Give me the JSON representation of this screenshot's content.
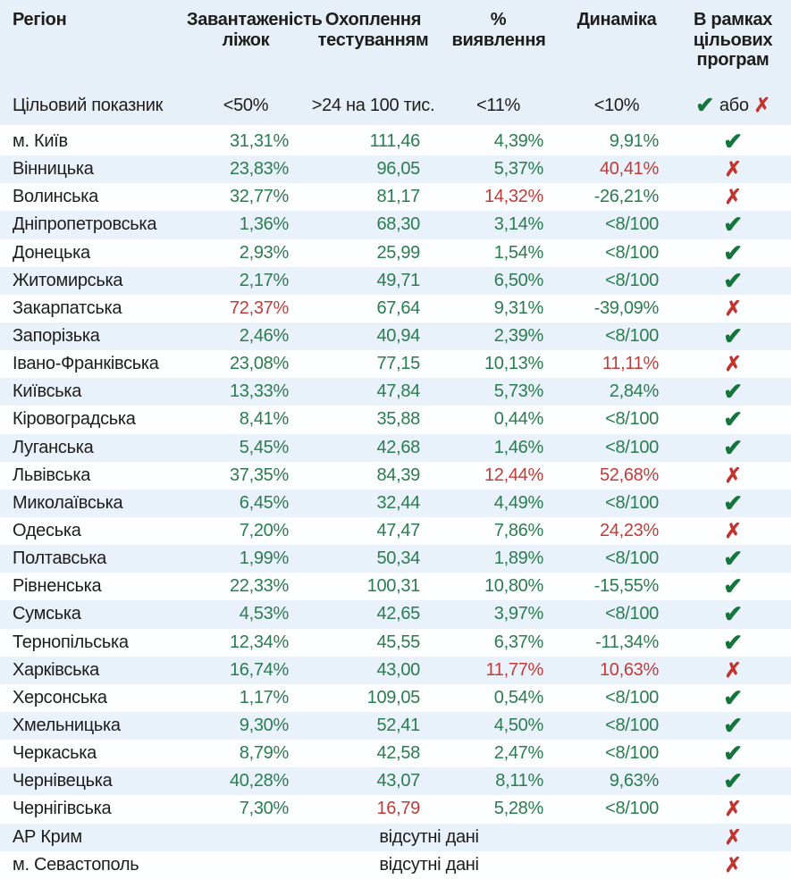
{
  "colors": {
    "header_bg": "#e7f0f9",
    "stripe": "#e9f1fa",
    "good": "#2b7c4f",
    "bad": "#bf3d38",
    "check": "#15763b",
    "cross": "#c2342e",
    "text": "#1d1d1b"
  },
  "icons": {
    "check": "✔",
    "cross": "✗"
  },
  "chart_data": {
    "type": "table",
    "columns": [
      "Регіон",
      "Завантаженість ліжок",
      "Охоплення тестуванням",
      "% виявлення",
      "Динаміка",
      "В рамках цільових програм"
    ],
    "target_row": {
      "label": "Цільовий показник",
      "beds": "<50%",
      "testing": ">24 на 100 тис.",
      "detection": "<11%",
      "dynamics": "<10%",
      "or_word": "або"
    },
    "rows": [
      {
        "region": "м. Київ",
        "values": [
          [
            "31,31%",
            "good"
          ],
          [
            "111,46",
            "good"
          ],
          [
            "4,39%",
            "good"
          ],
          [
            "9,91%",
            "good"
          ]
        ],
        "program": "check"
      },
      {
        "region": "Вінницька",
        "values": [
          [
            "23,83%",
            "good"
          ],
          [
            "96,05",
            "good"
          ],
          [
            "5,37%",
            "good"
          ],
          [
            "40,41%",
            "bad"
          ]
        ],
        "program": "cross"
      },
      {
        "region": "Волинська",
        "values": [
          [
            "32,77%",
            "good"
          ],
          [
            "81,17",
            "good"
          ],
          [
            "14,32%",
            "bad"
          ],
          [
            "-26,21%",
            "good"
          ]
        ],
        "program": "cross"
      },
      {
        "region": "Дніпропетровська",
        "values": [
          [
            "1,36%",
            "good"
          ],
          [
            "68,30",
            "good"
          ],
          [
            "3,14%",
            "good"
          ],
          [
            "<8/100",
            "good"
          ]
        ],
        "program": "check"
      },
      {
        "region": "Донецька",
        "values": [
          [
            "2,93%",
            "good"
          ],
          [
            "25,99",
            "good"
          ],
          [
            "1,54%",
            "good"
          ],
          [
            "<8/100",
            "good"
          ]
        ],
        "program": "check"
      },
      {
        "region": "Житомирська",
        "values": [
          [
            "2,17%",
            "good"
          ],
          [
            "49,71",
            "good"
          ],
          [
            "6,50%",
            "good"
          ],
          [
            "<8/100",
            "good"
          ]
        ],
        "program": "check"
      },
      {
        "region": "Закарпатська",
        "values": [
          [
            "72,37%",
            "bad"
          ],
          [
            "67,64",
            "good"
          ],
          [
            "9,31%",
            "good"
          ],
          [
            "-39,09%",
            "good"
          ]
        ],
        "program": "cross"
      },
      {
        "region": "Запорізька",
        "values": [
          [
            "2,46%",
            "good"
          ],
          [
            "40,94",
            "good"
          ],
          [
            "2,39%",
            "good"
          ],
          [
            "<8/100",
            "good"
          ]
        ],
        "program": "check"
      },
      {
        "region": "Івано-Франківська",
        "values": [
          [
            "23,08%",
            "good"
          ],
          [
            "77,15",
            "good"
          ],
          [
            "10,13%",
            "good"
          ],
          [
            "11,11%",
            "bad"
          ]
        ],
        "program": "cross"
      },
      {
        "region": "Київська",
        "values": [
          [
            "13,33%",
            "good"
          ],
          [
            "47,84",
            "good"
          ],
          [
            "5,73%",
            "good"
          ],
          [
            "2,84%",
            "good"
          ]
        ],
        "program": "check"
      },
      {
        "region": "Кіровоградська",
        "values": [
          [
            "8,41%",
            "good"
          ],
          [
            "35,88",
            "good"
          ],
          [
            "0,44%",
            "good"
          ],
          [
            "<8/100",
            "good"
          ]
        ],
        "program": "check"
      },
      {
        "region": "Луганська",
        "values": [
          [
            "5,45%",
            "good"
          ],
          [
            "42,68",
            "good"
          ],
          [
            "1,46%",
            "good"
          ],
          [
            "<8/100",
            "good"
          ]
        ],
        "program": "check"
      },
      {
        "region": "Львівська",
        "values": [
          [
            "37,35%",
            "good"
          ],
          [
            "84,39",
            "good"
          ],
          [
            "12,44%",
            "bad"
          ],
          [
            "52,68%",
            "bad"
          ]
        ],
        "program": "cross"
      },
      {
        "region": "Миколаївська",
        "values": [
          [
            "6,45%",
            "good"
          ],
          [
            "32,44",
            "good"
          ],
          [
            "4,49%",
            "good"
          ],
          [
            "<8/100",
            "good"
          ]
        ],
        "program": "check"
      },
      {
        "region": "Одеська",
        "values": [
          [
            "7,20%",
            "good"
          ],
          [
            "47,47",
            "good"
          ],
          [
            "7,86%",
            "good"
          ],
          [
            "24,23%",
            "bad"
          ]
        ],
        "program": "cross"
      },
      {
        "region": "Полтавська",
        "values": [
          [
            "1,99%",
            "good"
          ],
          [
            "50,34",
            "good"
          ],
          [
            "1,89%",
            "good"
          ],
          [
            "<8/100",
            "good"
          ]
        ],
        "program": "check"
      },
      {
        "region": "Рівненська",
        "values": [
          [
            "22,33%",
            "good"
          ],
          [
            "100,31",
            "good"
          ],
          [
            "10,80%",
            "good"
          ],
          [
            "-15,55%",
            "good"
          ]
        ],
        "program": "check"
      },
      {
        "region": "Сумська",
        "values": [
          [
            "4,53%",
            "good"
          ],
          [
            "42,65",
            "good"
          ],
          [
            "3,97%",
            "good"
          ],
          [
            "<8/100",
            "good"
          ]
        ],
        "program": "check"
      },
      {
        "region": "Тернопільська",
        "values": [
          [
            "12,34%",
            "good"
          ],
          [
            "45,55",
            "good"
          ],
          [
            "6,37%",
            "good"
          ],
          [
            "-11,34%",
            "good"
          ]
        ],
        "program": "check"
      },
      {
        "region": "Харківська",
        "values": [
          [
            "16,74%",
            "good"
          ],
          [
            "43,00",
            "good"
          ],
          [
            "11,77%",
            "bad"
          ],
          [
            "10,63%",
            "bad"
          ]
        ],
        "program": "cross"
      },
      {
        "region": "Херсонська",
        "values": [
          [
            "1,17%",
            "good"
          ],
          [
            "109,05",
            "good"
          ],
          [
            "0,54%",
            "good"
          ],
          [
            "<8/100",
            "good"
          ]
        ],
        "program": "check"
      },
      {
        "region": "Хмельницька",
        "values": [
          [
            "9,30%",
            "good"
          ],
          [
            "52,41",
            "good"
          ],
          [
            "4,50%",
            "good"
          ],
          [
            "<8/100",
            "good"
          ]
        ],
        "program": "check"
      },
      {
        "region": "Черкаська",
        "values": [
          [
            "8,79%",
            "good"
          ],
          [
            "42,58",
            "good"
          ],
          [
            "2,47%",
            "good"
          ],
          [
            "<8/100",
            "good"
          ]
        ],
        "program": "check"
      },
      {
        "region": "Чернівецька",
        "values": [
          [
            "40,28%",
            "good"
          ],
          [
            "43,07",
            "good"
          ],
          [
            "8,11%",
            "good"
          ],
          [
            "9,63%",
            "good"
          ]
        ],
        "program": "check"
      },
      {
        "region": "Чернігівська",
        "values": [
          [
            "7,30%",
            "good"
          ],
          [
            "16,79",
            "bad"
          ],
          [
            "5,28%",
            "good"
          ],
          [
            "<8/100",
            "good"
          ]
        ],
        "program": "cross"
      },
      {
        "region": "АР Крим",
        "nodata": "відсутні дані",
        "program": "cross"
      },
      {
        "region": "м. Севастополь",
        "nodata": "відсутні дані",
        "program": "cross"
      }
    ]
  }
}
